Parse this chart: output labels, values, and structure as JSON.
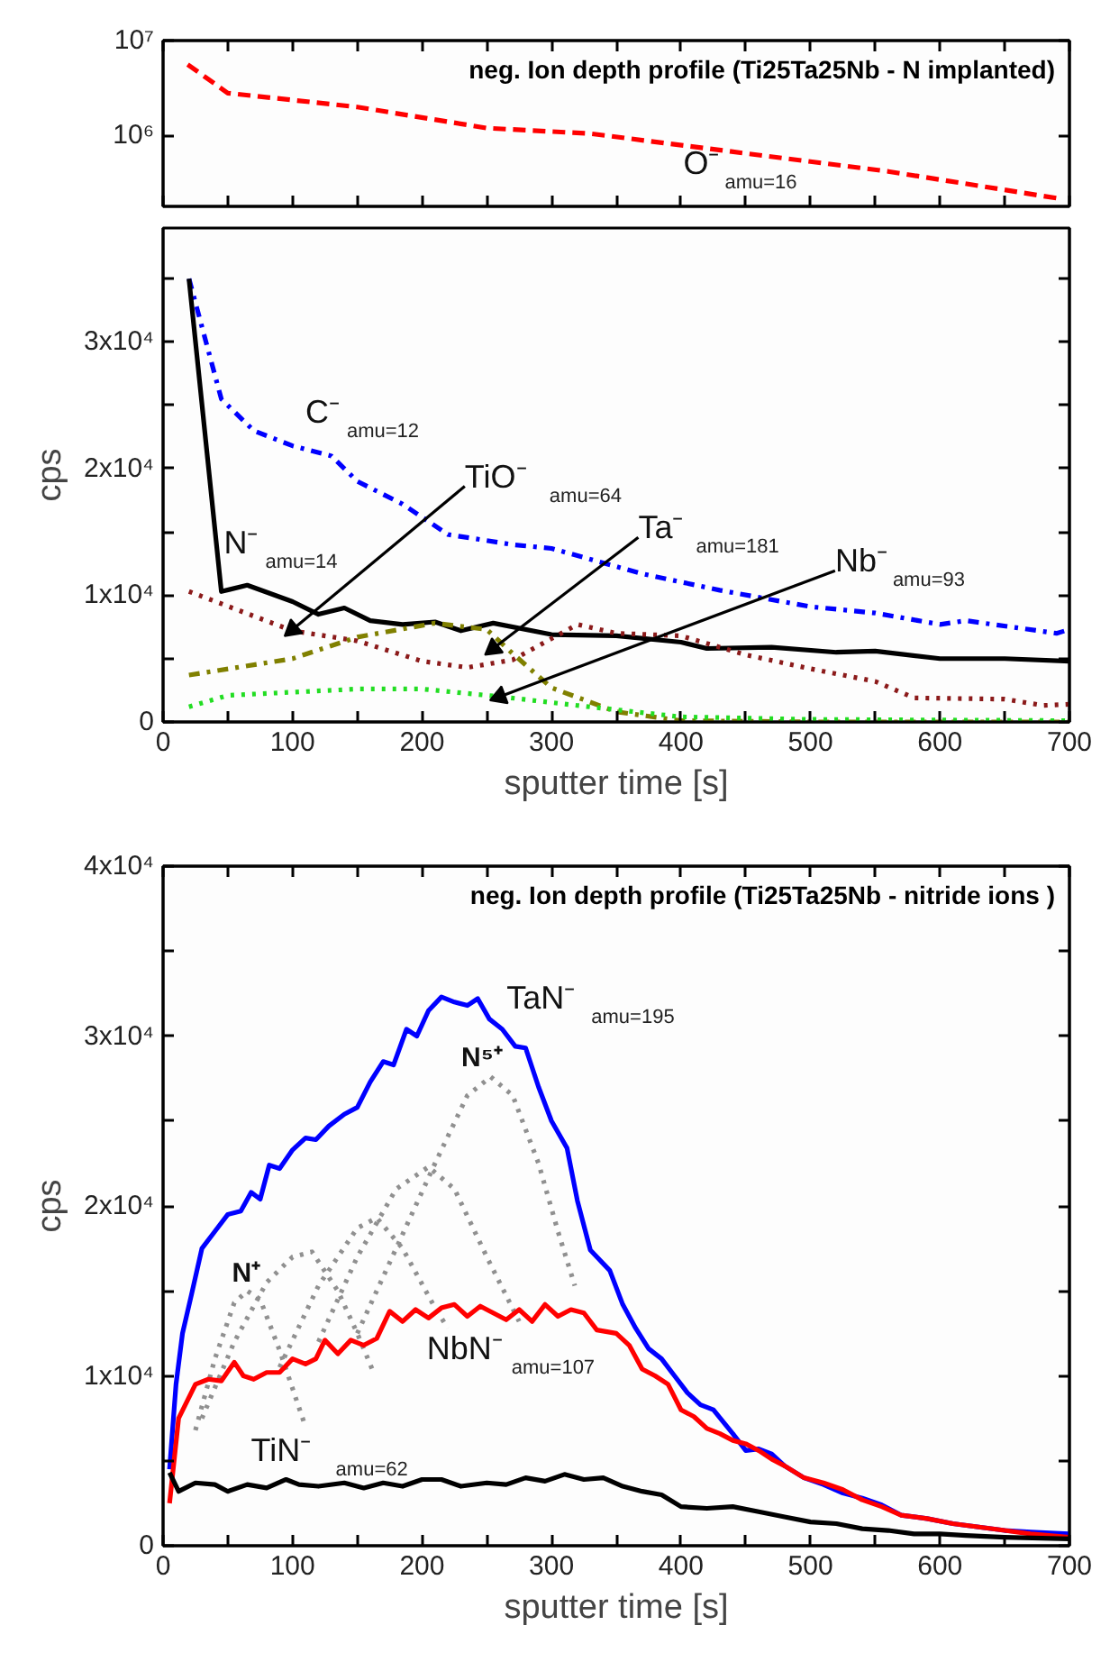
{
  "chart_data": [
    {
      "type": "line",
      "title": "neg. Ion depth profile (Ti25Ta25Nb - N implanted)",
      "log": "y",
      "tick_labels": "y",
      "xlim": [
        0,
        700
      ],
      "ylim": [
        180000,
        10000000
      ],
      "xticks": [
        0,
        {
          "value": 50,
          "label": null
        },
        100,
        {
          "value": 150,
          "label": null
        },
        200,
        {
          "value": 250,
          "label": null
        },
        300,
        {
          "value": 350,
          "label": null
        },
        400,
        {
          "value": 450,
          "label": null
        },
        500,
        {
          "value": 550,
          "label": null
        },
        600,
        {
          "value": 650,
          "label": null
        },
        700
      ],
      "yticks": [
        {
          "value": 1000000,
          "label": "10⁶"
        },
        {
          "value": 10000000,
          "label": "10⁷"
        }
      ],
      "series": [
        {
          "color": "#ff0000",
          "line_style": "dashed",
          "x": [
            19,
            50,
            150,
            250,
            330,
            450,
            560,
            690
          ],
          "values": [
            5600000,
            2800000,
            2000000,
            1200000,
            1050000,
            650000,
            420000,
            220000
          ]
        }
      ],
      "annotations": [
        "O⁻$_{amu=16}$"
      ]
    },
    {
      "type": "line",
      "ylabel": "cps",
      "xlabel": "sputter time [s]",
      "xlim": [
        0,
        700
      ],
      "ylim": [
        0,
        39000
      ],
      "xticks": [
        0,
        {
          "value": 50,
          "label": null
        },
        100,
        {
          "value": 150,
          "label": null
        },
        200,
        {
          "value": 250,
          "label": null
        },
        300,
        {
          "value": 350,
          "label": null
        },
        400,
        {
          "value": 450,
          "label": null
        },
        500,
        {
          "value": 550,
          "label": null
        },
        600,
        {
          "value": 650,
          "label": null
        },
        700
      ],
      "yticks": [
        0,
        {
          "value": 5000,
          "label": null
        },
        {
          "value": 10000,
          "label": "1x10⁴"
        },
        {
          "value": 15000,
          "label": null
        },
        {
          "value": 20000,
          "label": "2x10⁴"
        },
        {
          "value": 25000,
          "label": null
        },
        {
          "value": 30000,
          "label": "3x10⁴"
        },
        {
          "value": 35000,
          "label": null
        }
      ],
      "series": [
        {
          "color": "#0000ff",
          "line_style": "dashdot",
          "x": [
            20,
            45,
            70,
            100,
            130,
            150,
            185,
            220,
            270,
            300,
            370,
            430,
            500,
            550,
            600,
            620,
            690,
            700
          ],
          "values": [
            35000,
            25500,
            23000,
            21800,
            21000,
            19000,
            17200,
            14800,
            14000,
            13700,
            11700,
            10400,
            9100,
            8600,
            7700,
            8000,
            7000,
            7300
          ]
        },
        {
          "color": "#000000",
          "line_style": "solid",
          "x": [
            20,
            45,
            65,
            100,
            120,
            140,
            160,
            185,
            210,
            230,
            255,
            300,
            350,
            400,
            420,
            470,
            520,
            550,
            600,
            650,
            700
          ],
          "values": [
            35000,
            10300,
            10800,
            9500,
            8500,
            9000,
            8000,
            7700,
            7900,
            7200,
            7800,
            6900,
            6800,
            6300,
            5800,
            5900,
            5500,
            5600,
            5000,
            5000,
            4800
          ]
        },
        {
          "color": "#8b1a1a",
          "line_style": "dotted",
          "x": [
            20,
            100,
            150,
            200,
            235,
            270,
            320,
            350,
            400,
            450,
            500,
            550,
            580,
            650,
            680,
            700
          ],
          "values": [
            10300,
            7200,
            6400,
            4800,
            4300,
            4900,
            7700,
            7000,
            6800,
            5300,
            4200,
            3200,
            1900,
            1800,
            1300,
            1400
          ]
        },
        {
          "color": "#808000",
          "line_style": "dashdot",
          "x": [
            20,
            100,
            150,
            210,
            250,
            270,
            300,
            350,
            400,
            500,
            700
          ],
          "values": [
            3700,
            5000,
            6700,
            7800,
            7300,
            5400,
            2700,
            800,
            100,
            0,
            0
          ]
        },
        {
          "color": "#22dd22",
          "line_style": "dotted",
          "x": [
            20,
            50,
            150,
            200,
            260,
            320,
            400,
            500,
            700
          ],
          "values": [
            1200,
            2100,
            2600,
            2600,
            2000,
            1300,
            400,
            200,
            100
          ]
        }
      ],
      "annotations": [
        "C⁻$_{amu=12}$",
        "N⁻$_{amu=14}$",
        {
          "text": "TiO⁻$_{amu=64}$",
          "x": 100,
          "y": 7300
        },
        {
          "text": "Ta⁻$_{amu=181}$",
          "x": 255,
          "y": 5800
        },
        {
          "text": "Nb⁻$_{amu=93}$",
          "x": 260,
          "y": 2000
        }
      ]
    },
    {
      "type": "line",
      "title": "neg. Ion depth profile (Ti25Ta25Nb - nitride ions )",
      "ylabel": "cps",
      "xlabel": "sputter time [s]",
      "xlim": [
        0,
        700
      ],
      "ylim": [
        0,
        40000
      ],
      "xticks": [
        0,
        {
          "value": 50,
          "label": null
        },
        100,
        {
          "value": 150,
          "label": null
        },
        200,
        {
          "value": 250,
          "label": null
        },
        300,
        {
          "value": 350,
          "label": null
        },
        400,
        {
          "value": 450,
          "label": null
        },
        500,
        {
          "value": 550,
          "label": null
        },
        600,
        {
          "value": 650,
          "label": null
        },
        700
      ],
      "yticks": [
        0,
        {
          "value": 5000,
          "label": null
        },
        {
          "value": 10000,
          "label": "1x10⁴"
        },
        {
          "value": 15000,
          "label": null
        },
        {
          "value": 20000,
          "label": "2x10⁴"
        },
        {
          "value": 25000,
          "label": null
        },
        {
          "value": 30000,
          "label": "3x10⁴"
        },
        {
          "value": 35000,
          "label": null
        },
        {
          "value": 40000,
          "label": "4x10⁴"
        }
      ],
      "series": [
        {
          "color": "#909090",
          "line_style": "dotted",
          "x": [
            25,
            40,
            55,
            65,
            75,
            90,
            110
          ],
          "values": [
            6800,
            11000,
            14300,
            15000,
            14500,
            11500,
            7000
          ]
        },
        {
          "color": "#909090",
          "line_style": "dotted",
          "x": [
            30,
            55,
            80,
            100,
            115,
            135,
            150,
            162
          ],
          "values": [
            7500,
            12000,
            15500,
            17000,
            17300,
            15000,
            12500,
            10300
          ]
        },
        {
          "color": "#909090",
          "line_style": "dotted",
          "x": [
            90,
            120,
            150,
            165,
            185,
            210,
            220
          ],
          "values": [
            10500,
            15300,
            18700,
            19300,
            17500,
            14000,
            12800
          ]
        },
        {
          "color": "#909090",
          "line_style": "dotted",
          "x": [
            120,
            150,
            180,
            205,
            225,
            250,
            275
          ],
          "values": [
            12000,
            17000,
            21000,
            22300,
            21000,
            17000,
            13200
          ]
        },
        {
          "color": "#909090",
          "line_style": "dotted",
          "x": [
            150,
            180,
            210,
            235,
            253,
            270,
            290,
            305,
            318
          ],
          "values": [
            12500,
            17500,
            22500,
            26500,
            27600,
            26500,
            22500,
            18500,
            15300
          ]
        },
        {
          "color": "#0000ff",
          "line_style": "solid",
          "x": [
            5,
            10,
            15,
            22,
            30,
            40,
            50,
            60,
            68,
            75,
            82,
            90,
            100,
            110,
            118,
            128,
            140,
            150,
            160,
            170,
            178,
            188,
            196,
            205,
            215,
            225,
            235,
            243,
            252,
            262,
            272,
            280,
            290,
            300,
            312,
            320,
            330,
            345,
            355,
            365,
            375,
            385,
            395,
            405,
            415,
            425,
            440,
            450,
            460,
            470,
            480,
            495,
            510,
            525,
            540,
            555,
            570,
            590,
            610,
            630,
            650,
            670,
            700
          ],
          "values": [
            4500,
            9500,
            12500,
            14800,
            17500,
            18500,
            19500,
            19700,
            20800,
            20400,
            22400,
            22200,
            23300,
            24000,
            23900,
            24700,
            25400,
            25800,
            27300,
            28500,
            28300,
            30400,
            30000,
            31500,
            32300,
            32000,
            31800,
            32200,
            31000,
            30400,
            29400,
            29300,
            27000,
            25000,
            23400,
            20300,
            17400,
            16200,
            14200,
            12800,
            11600,
            11000,
            10000,
            9000,
            8300,
            8000,
            6600,
            5600,
            5700,
            5400,
            4700,
            4000,
            3600,
            3100,
            2800,
            2400,
            1800,
            1600,
            1300,
            1100,
            900,
            800,
            700
          ]
        },
        {
          "color": "#ff0000",
          "line_style": "solid",
          "x": [
            5,
            12,
            25,
            35,
            45,
            55,
            62,
            70,
            80,
            90,
            100,
            110,
            118,
            125,
            135,
            145,
            155,
            165,
            175,
            185,
            195,
            205,
            215,
            225,
            235,
            245,
            255,
            265,
            275,
            285,
            295,
            305,
            315,
            325,
            335,
            350,
            360,
            370,
            380,
            390,
            400,
            410,
            420,
            430,
            440,
            450,
            460,
            470,
            480,
            495,
            510,
            525,
            540,
            555,
            570,
            590,
            610,
            630,
            650,
            670,
            700
          ],
          "values": [
            2500,
            7500,
            9500,
            9800,
            9700,
            10800,
            10000,
            9800,
            10200,
            10200,
            11000,
            10700,
            11000,
            12100,
            11300,
            12100,
            11800,
            12200,
            13800,
            13200,
            13900,
            13400,
            14000,
            14200,
            13500,
            14100,
            13700,
            13300,
            13900,
            13200,
            14200,
            13500,
            13900,
            13700,
            12700,
            12500,
            11800,
            10400,
            10000,
            9500,
            8000,
            7600,
            6900,
            6600,
            6200,
            6000,
            5600,
            5100,
            4700,
            4000,
            3700,
            3300,
            2700,
            2300,
            1800,
            1600,
            1300,
            1100,
            900,
            700,
            500
          ]
        },
        {
          "color": "#000000",
          "line_style": "solid",
          "x": [
            5,
            12,
            25,
            40,
            50,
            65,
            80,
            95,
            105,
            120,
            140,
            155,
            170,
            185,
            200,
            215,
            230,
            250,
            265,
            280,
            295,
            310,
            325,
            340,
            355,
            370,
            385,
            400,
            420,
            440,
            460,
            480,
            500,
            520,
            540,
            560,
            580,
            600,
            620,
            650,
            700
          ],
          "values": [
            4300,
            3200,
            3700,
            3600,
            3200,
            3600,
            3400,
            3900,
            3600,
            3500,
            3700,
            3400,
            3700,
            3500,
            3900,
            3900,
            3500,
            3700,
            3600,
            4000,
            3800,
            4200,
            3900,
            4000,
            3500,
            3200,
            3000,
            2300,
            2200,
            2300,
            2000,
            1700,
            1400,
            1300,
            1000,
            900,
            700,
            700,
            600,
            500,
            400
          ]
        }
      ],
      "annotations": [
        "TaN⁻$_{amu=195}$",
        "NbN⁻$_{amu=107}$",
        "TiN⁻$_{amu=62}$",
        "N⁺",
        "N⁵⁺"
      ]
    }
  ]
}
